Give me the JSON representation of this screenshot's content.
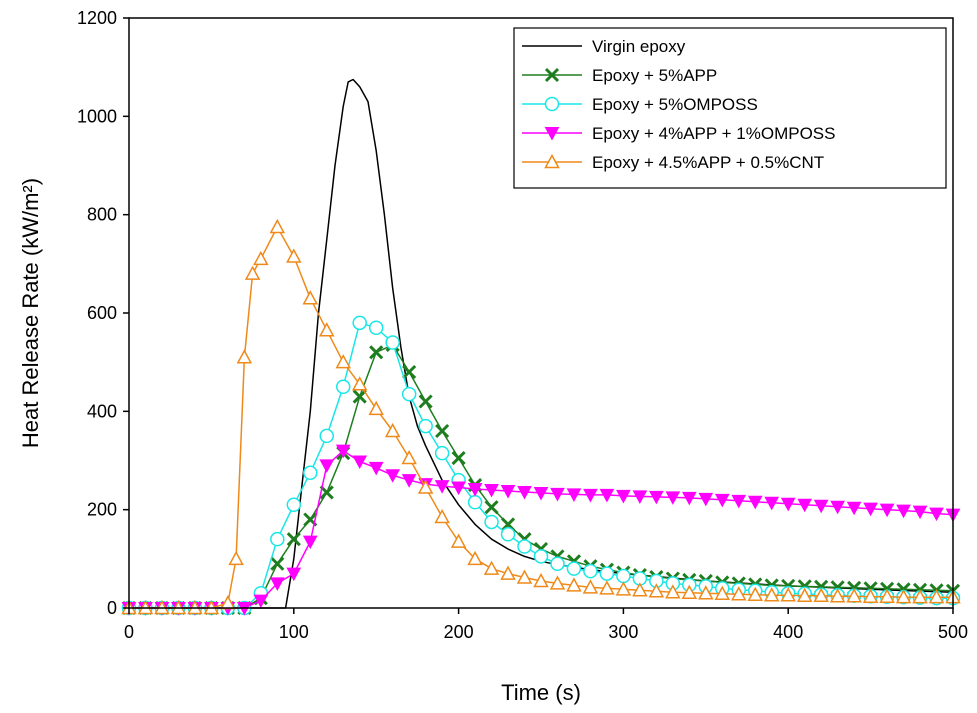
{
  "chart_data": {
    "type": "line",
    "title": "",
    "xlabel": "Time (s)",
    "ylabel": "Heat Release Rate (kW/m²)",
    "xlim": [
      0,
      500
    ],
    "ylim": [
      0,
      1200
    ],
    "xticks": [
      "0",
      "100",
      "200",
      "300",
      "400",
      "500"
    ],
    "yticks": [
      "0",
      "200",
      "400",
      "600",
      "800",
      "1000",
      "1200"
    ],
    "grid": false,
    "legend_position": "top-right",
    "series": [
      {
        "name": "Virgin epoxy",
        "color": "#000000",
        "marker": "none",
        "x": [
          0,
          90,
          95,
          100,
          105,
          110,
          115,
          120,
          125,
          130,
          133,
          136,
          140,
          145,
          150,
          155,
          160,
          165,
          170,
          175,
          180,
          190,
          200,
          210,
          220,
          230,
          240,
          250,
          260,
          280,
          300,
          350,
          400,
          450,
          500
        ],
        "y": [
          0,
          0,
          0,
          100,
          250,
          400,
          600,
          750,
          900,
          1020,
          1070,
          1075,
          1060,
          1030,
          930,
          800,
          650,
          530,
          430,
          370,
          330,
          260,
          210,
          170,
          140,
          120,
          105,
          95,
          88,
          78,
          70,
          55,
          45,
          38,
          32
        ]
      },
      {
        "name": "Epoxy + 5%APP",
        "color": "#1e7d1e",
        "marker": "x",
        "x": [
          0,
          10,
          20,
          30,
          40,
          50,
          60,
          70,
          80,
          90,
          100,
          110,
          120,
          130,
          140,
          150,
          160,
          170,
          180,
          190,
          200,
          210,
          220,
          230,
          240,
          250,
          260,
          270,
          280,
          290,
          300,
          310,
          320,
          330,
          340,
          350,
          360,
          370,
          380,
          390,
          400,
          410,
          420,
          430,
          440,
          450,
          460,
          470,
          480,
          490,
          500
        ],
        "y": [
          0,
          0,
          0,
          0,
          0,
          0,
          0,
          0,
          20,
          90,
          140,
          180,
          235,
          315,
          430,
          520,
          535,
          480,
          420,
          360,
          305,
          250,
          205,
          170,
          140,
          120,
          105,
          95,
          85,
          78,
          72,
          67,
          63,
          60,
          57,
          55,
          52,
          50,
          48,
          46,
          45,
          44,
          43,
          42,
          41,
          40,
          39,
          38,
          37,
          36,
          35
        ]
      },
      {
        "name": "Epoxy + 5%OMPOSS",
        "color": "#19e6e6",
        "marker": "o",
        "x": [
          0,
          10,
          20,
          30,
          40,
          50,
          60,
          70,
          80,
          90,
          100,
          110,
          120,
          130,
          140,
          150,
          160,
          170,
          180,
          190,
          200,
          210,
          220,
          230,
          240,
          250,
          260,
          270,
          280,
          290,
          300,
          310,
          320,
          330,
          340,
          350,
          360,
          370,
          380,
          390,
          400,
          410,
          420,
          430,
          440,
          450,
          460,
          470,
          480,
          490,
          500
        ],
        "y": [
          0,
          0,
          0,
          0,
          0,
          0,
          0,
          0,
          30,
          140,
          210,
          275,
          350,
          450,
          580,
          570,
          540,
          435,
          370,
          315,
          260,
          215,
          175,
          150,
          125,
          105,
          90,
          80,
          75,
          70,
          65,
          60,
          55,
          50,
          47,
          44,
          40,
          37,
          35,
          32,
          30,
          29,
          27,
          26,
          25,
          24,
          23,
          22,
          21,
          20,
          20
        ]
      },
      {
        "name": "Epoxy + 4%APP + 1%OMPOSS",
        "color": "#ff00ff",
        "marker": "triangle-down",
        "x": [
          0,
          10,
          20,
          30,
          40,
          50,
          60,
          70,
          80,
          90,
          100,
          110,
          120,
          130,
          140,
          150,
          160,
          170,
          180,
          190,
          200,
          210,
          220,
          230,
          240,
          250,
          260,
          270,
          280,
          290,
          300,
          310,
          320,
          330,
          340,
          350,
          360,
          370,
          380,
          390,
          400,
          410,
          420,
          430,
          440,
          450,
          460,
          470,
          480,
          490,
          500
        ],
        "y": [
          0,
          0,
          0,
          0,
          0,
          0,
          0,
          0,
          15,
          50,
          70,
          135,
          290,
          320,
          298,
          285,
          270,
          260,
          252,
          248,
          245,
          242,
          240,
          238,
          236,
          234,
          232,
          231,
          230,
          230,
          228,
          227,
          226,
          225,
          224,
          222,
          220,
          218,
          216,
          214,
          212,
          210,
          208,
          206,
          204,
          202,
          200,
          198,
          196,
          192,
          190
        ]
      },
      {
        "name": "Epoxy + 4.5%APP + 0.5%CNT",
        "color": "#ef8a1a",
        "marker": "triangle-up",
        "x": [
          0,
          10,
          20,
          30,
          40,
          50,
          60,
          65,
          70,
          75,
          80,
          90,
          100,
          110,
          120,
          130,
          140,
          150,
          160,
          170,
          180,
          190,
          200,
          210,
          220,
          230,
          240,
          250,
          260,
          270,
          280,
          290,
          300,
          310,
          320,
          330,
          340,
          350,
          360,
          370,
          380,
          390,
          400,
          410,
          420,
          430,
          440,
          450,
          460,
          470,
          480,
          490,
          500
        ],
        "y": [
          0,
          0,
          0,
          0,
          0,
          0,
          10,
          100,
          510,
          680,
          710,
          775,
          715,
          630,
          565,
          500,
          455,
          405,
          360,
          305,
          245,
          185,
          135,
          100,
          80,
          70,
          62,
          55,
          50,
          46,
          42,
          40,
          38,
          36,
          34,
          32,
          31,
          30,
          29,
          28,
          27,
          26,
          26,
          25,
          25,
          24,
          24,
          23,
          23,
          22,
          22,
          22,
          22
        ]
      }
    ]
  }
}
